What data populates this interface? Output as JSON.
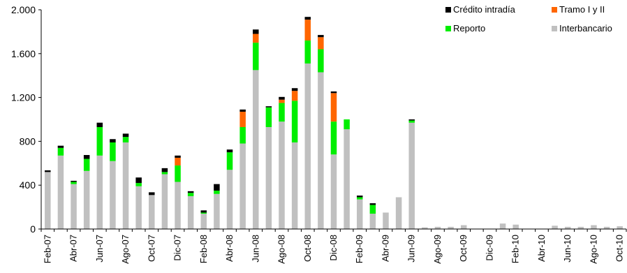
{
  "chart_data": {
    "type": "bar",
    "stacked": true,
    "title": "",
    "xlabel": "",
    "ylabel": "",
    "ylim": [
      0,
      2000
    ],
    "y_ticks": [
      0,
      400,
      800,
      1200,
      1600,
      2000
    ],
    "y_tick_labels": [
      "0",
      "400",
      "800",
      "1.200",
      "1.600",
      "2.000"
    ],
    "grid": false,
    "legend_position": "top-right",
    "categories": [
      "Feb-07",
      "Mar-07",
      "Abr-07",
      "May-07",
      "Jun-07",
      "Jul-07",
      "Ago-07",
      "Sep-07",
      "Oct-07",
      "Nov-07",
      "Dic-07",
      "Ene-08",
      "Feb-08",
      "Mar-08",
      "Abr-08",
      "May-08",
      "Jun-08",
      "Jul-08",
      "Ago-08",
      "Sep-08",
      "Oct-08",
      "Nov-08",
      "Dic-08",
      "Ene-09",
      "Feb-09",
      "Mar-09",
      "Abr-09",
      "May-09",
      "Jun-09",
      "Jul-09",
      "Ago-09",
      "Sep-09",
      "Oct-09",
      "Nov-09",
      "Dic-09",
      "Ene-10",
      "Feb-10",
      "Mar-10",
      "Abr-10",
      "May-10",
      "Jun-10",
      "Jul-10",
      "Ago-10",
      "Sep-10",
      "Oct-10"
    ],
    "x_tick_labels": [
      "Feb-07",
      "Abr-07",
      "Jun-07",
      "Ago-07",
      "Oct-07",
      "Dic-07",
      "Feb-08",
      "Abr-08",
      "Jun-08",
      "Ago-08",
      "Oct-08",
      "Dic-08",
      "Feb-09",
      "Abr-09",
      "Jun-09",
      "Ago-09",
      "Oct-09",
      "Dic-09",
      "Feb-10",
      "Abr-10",
      "Jun-10",
      "Ago-10",
      "Oct-10"
    ],
    "series": [
      {
        "name": "Interbancario",
        "color": "#c0c0c0",
        "values": [
          520,
          670,
          410,
          530,
          670,
          620,
          790,
          390,
          310,
          500,
          430,
          300,
          140,
          320,
          540,
          780,
          1450,
          930,
          980,
          790,
          1510,
          1430,
          680,
          910,
          270,
          140,
          150,
          290,
          970,
          15,
          20,
          20,
          35,
          0,
          0,
          50,
          40,
          0,
          0,
          30,
          20,
          20,
          35,
          20,
          25
        ]
      },
      {
        "name": "Reporto",
        "color": "#00ee00",
        "values": [
          0,
          70,
          20,
          110,
          260,
          170,
          50,
          30,
          0,
          20,
          150,
          30,
          10,
          30,
          160,
          150,
          250,
          180,
          170,
          380,
          210,
          210,
          300,
          90,
          20,
          80,
          0,
          0,
          20,
          0,
          0,
          0,
          0,
          0,
          0,
          0,
          0,
          0,
          0,
          0,
          0,
          0,
          0,
          0,
          0
        ]
      },
      {
        "name": "Tramo I y II",
        "color": "#ff6600",
        "values": [
          0,
          0,
          0,
          0,
          0,
          0,
          0,
          0,
          0,
          0,
          70,
          0,
          0,
          0,
          0,
          140,
          80,
          0,
          30,
          90,
          190,
          110,
          260,
          0,
          0,
          0,
          0,
          0,
          0,
          0,
          0,
          0,
          0,
          0,
          0,
          0,
          0,
          0,
          0,
          0,
          0,
          0,
          0,
          0,
          0
        ]
      },
      {
        "name": "Crédito intradía",
        "color": "#000000",
        "values": [
          15,
          20,
          10,
          35,
          40,
          30,
          30,
          50,
          25,
          35,
          20,
          15,
          20,
          60,
          25,
          20,
          40,
          10,
          25,
          25,
          25,
          20,
          15,
          0,
          15,
          15,
          0,
          0,
          10,
          0,
          0,
          0,
          0,
          0,
          0,
          0,
          0,
          0,
          0,
          0,
          0,
          0,
          0,
          0,
          0
        ]
      }
    ],
    "legend_order": [
      "Crédito intradía",
      "Tramo I y II",
      "Reporto",
      "Interbancario"
    ]
  }
}
